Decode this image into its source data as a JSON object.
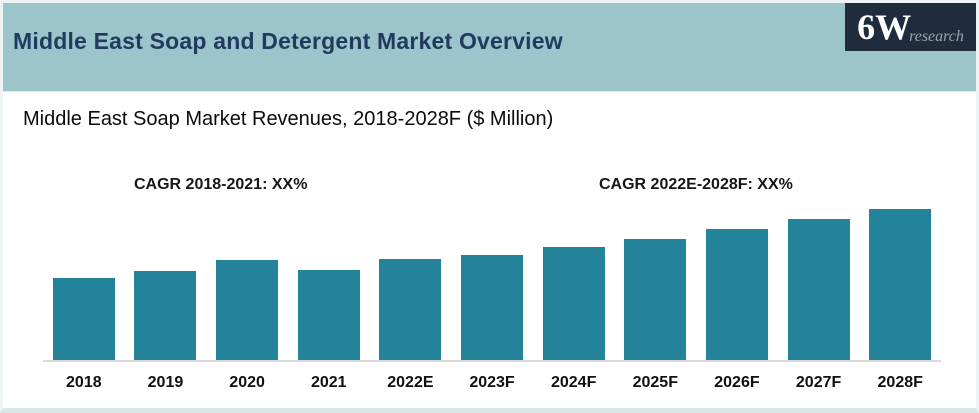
{
  "header": {
    "title": "Middle East Soap and Detergent Market Overview",
    "logo": {
      "main": "6W",
      "sub": "research"
    }
  },
  "chart": {
    "title": "Middle East Soap Market Revenues, 2018-2028F  ($ Million)",
    "cagr_left": "CAGR 2018-2021: XX%",
    "cagr_right": "CAGR 2022E-2028F: XX%"
  },
  "colors": {
    "header_bg": "#9bc5cb",
    "header_title_text": "#223a5e",
    "logo_bg": "#1f2c3d",
    "bar": "#23839a",
    "bottom_strip": "#d9e6e8"
  },
  "chart_data": {
    "type": "bar",
    "title": "Middle East Soap Market Revenues, 2018-2028F ($ Million)",
    "categories": [
      "2018",
      "2019",
      "2020",
      "2021",
      "2022E",
      "2023F",
      "2024F",
      "2025F",
      "2026F",
      "2027F",
      "2028F"
    ],
    "values": [
      82,
      89,
      100,
      90,
      101,
      105,
      113,
      121,
      131,
      141,
      151
    ],
    "values_unit": "$ Million (numeric values masked on chart; values above are relative bar heights indexed to 2020 = 100)",
    "annotations": [
      "CAGR 2018-2021: XX%",
      "CAGR 2022E-2028F: XX%"
    ],
    "xlabel": "",
    "ylabel": "",
    "y_axis_shown": false,
    "gridlines": false,
    "legend": false,
    "bar_color": "#23839a"
  }
}
